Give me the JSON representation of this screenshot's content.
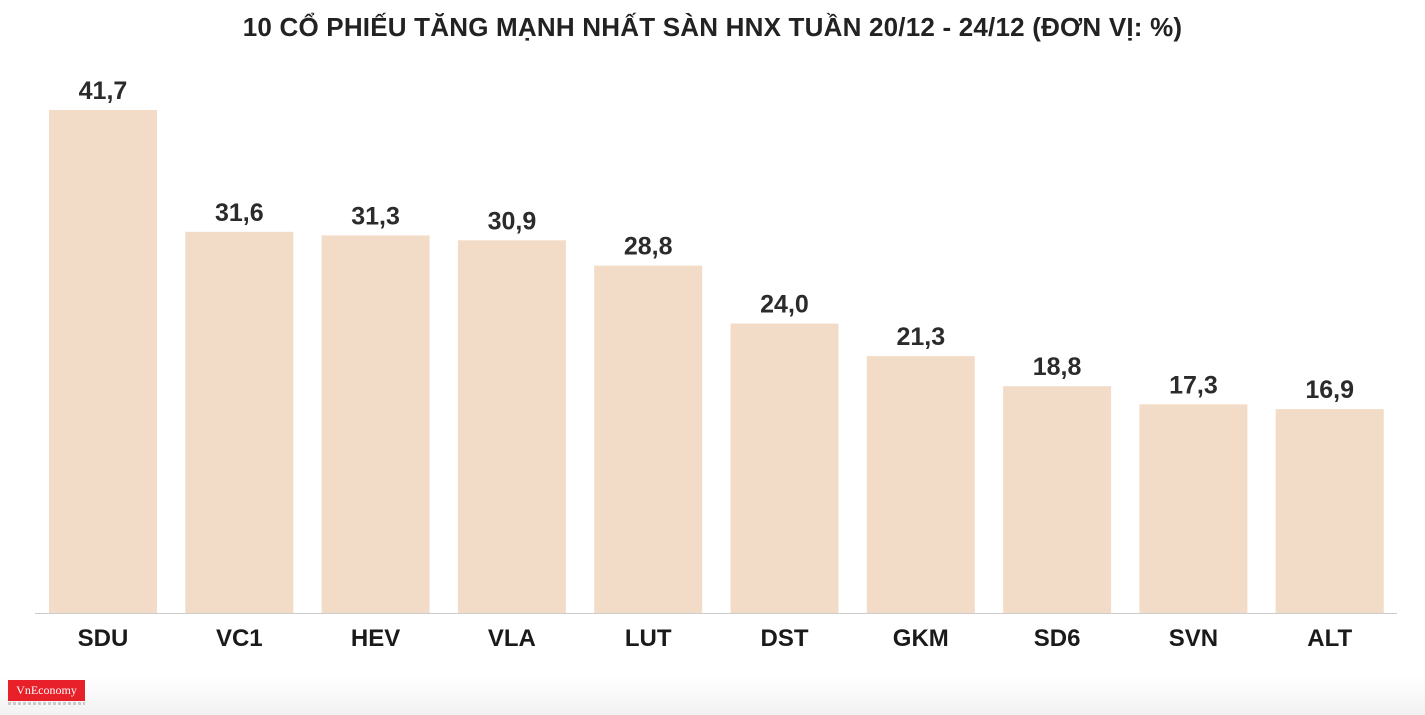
{
  "chart_data": {
    "type": "bar",
    "title": "10 CỔ PHIẾU TĂNG MẠNH NHẤT SÀN HNX TUẦN 20/12 - 24/12 (ĐƠN VỊ: %)",
    "categories": [
      "SDU",
      "VC1",
      "HEV",
      "VLA",
      "LUT",
      "DST",
      "GKM",
      "SD6",
      "SVN",
      "ALT"
    ],
    "values": [
      41.7,
      31.6,
      31.3,
      30.9,
      28.8,
      24.0,
      21.3,
      18.8,
      17.3,
      16.9
    ],
    "value_labels": [
      "41,7",
      "31,6",
      "31,3",
      "30,9",
      "28,8",
      "24,0",
      "21,3",
      "18,8",
      "17,3",
      "16,9"
    ],
    "xlabel": "",
    "ylabel": "",
    "ylim": [
      0,
      41.7
    ],
    "grid": false,
    "bar_color": "#f2dcc8",
    "axis_color": "#cccccc"
  },
  "footer": {
    "logo_text": "VnEconomy",
    "logo_color": "#e8202a"
  }
}
